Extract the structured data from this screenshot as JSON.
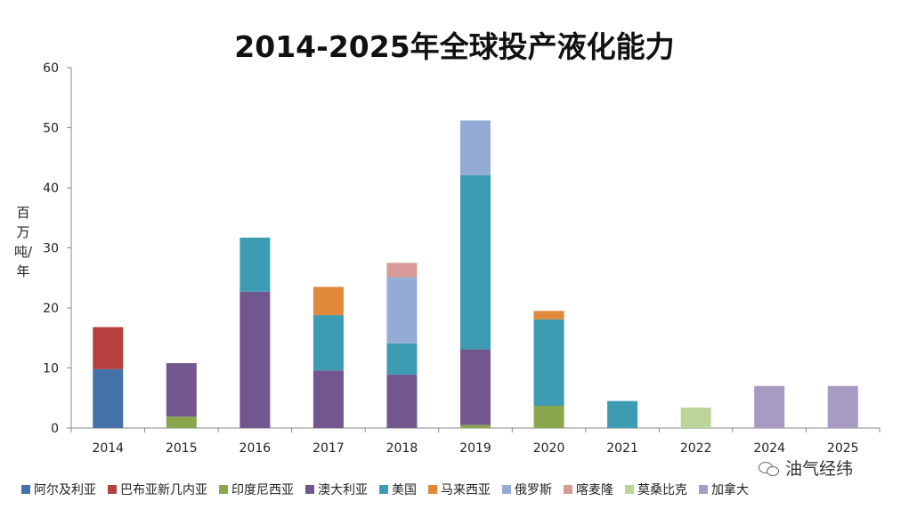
{
  "page": {
    "title": "2014-2025年全球投产液化能力",
    "watermark": "油气经纬"
  },
  "chart_data": {
    "type": "bar",
    "stacked": true,
    "title": "2014-2025年全球投产液化能力",
    "ylabel": "百万吨/年",
    "xlabel": "",
    "ylim": [
      0,
      60
    ],
    "yticks": [
      0,
      10,
      20,
      30,
      40,
      50,
      60
    ],
    "grid": false,
    "legend_position": "bottom",
    "categories": [
      "2014",
      "2015",
      "2016",
      "2017",
      "2018",
      "2019",
      "2020",
      "2021",
      "2022",
      "2024",
      "2025"
    ],
    "series": [
      {
        "name": "阿尔及利亚",
        "color": "#4472a8",
        "values": [
          9.8,
          0,
          0,
          0,
          0,
          0,
          0,
          0,
          0,
          0,
          0
        ]
      },
      {
        "name": "巴布亚新几内亚",
        "color": "#b5403d",
        "values": [
          7.0,
          0,
          0,
          0,
          0,
          0,
          0,
          0,
          0,
          0,
          0
        ]
      },
      {
        "name": "印度尼西亚",
        "color": "#8aa64c",
        "values": [
          0,
          1.9,
          0,
          0,
          0,
          0.5,
          3.7,
          0,
          0,
          0,
          0
        ]
      },
      {
        "name": "澳大利亚",
        "color": "#72578f",
        "values": [
          0,
          8.9,
          22.7,
          9.6,
          8.9,
          12.6,
          0,
          0,
          0,
          0,
          0
        ]
      },
      {
        "name": "美国",
        "color": "#3d9cb1",
        "values": [
          0,
          0,
          9.0,
          9.2,
          5.2,
          29.0,
          14.4,
          4.5,
          0,
          0,
          0
        ]
      },
      {
        "name": "马来西亚",
        "color": "#e1883a",
        "values": [
          0,
          0,
          0,
          4.7,
          0,
          0,
          1.4,
          0,
          0,
          0,
          0
        ]
      },
      {
        "name": "俄罗斯",
        "color": "#94acd5",
        "values": [
          0,
          0,
          0,
          0,
          11.0,
          9.1,
          0,
          0,
          0,
          0,
          0
        ]
      },
      {
        "name": "喀麦隆",
        "color": "#d89a99",
        "values": [
          0,
          0,
          0,
          0,
          2.4,
          0,
          0,
          0,
          0,
          0,
          0
        ]
      },
      {
        "name": "莫桑比克",
        "color": "#bcd498",
        "values": [
          0,
          0,
          0,
          0,
          0,
          0,
          0,
          0,
          3.4,
          0,
          0
        ]
      },
      {
        "name": "加拿大",
        "color": "#a89bc3",
        "values": [
          0,
          0,
          0,
          0,
          0,
          0,
          0,
          0,
          0,
          7.0,
          7.0
        ]
      }
    ]
  }
}
